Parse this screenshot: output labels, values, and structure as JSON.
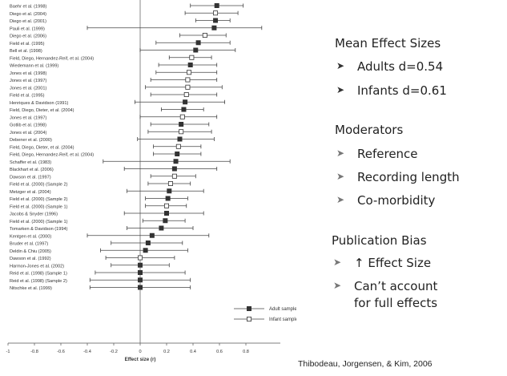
{
  "chart_data": {
    "type": "forest",
    "xlabel": "Effect size (r)",
    "xlim": [
      -1,
      1
    ],
    "xticks": [
      "-1",
      "-0.8",
      "-0.6",
      "-0.4",
      "-0.2",
      "0",
      "0.2",
      "0.4",
      "0.6",
      "0.8"
    ],
    "legend": {
      "placement": "bottom-right",
      "items": [
        "Adult sample",
        "Infant sample"
      ]
    },
    "studies": [
      {
        "label": "Baehr et al. (1998)",
        "group": "adult",
        "est": 0.58,
        "lo": 0.38,
        "hi": 0.78
      },
      {
        "label": "Diego et al. (2004)",
        "group": "infant",
        "est": 0.57,
        "lo": 0.34,
        "hi": 0.74
      },
      {
        "label": "Diego et al. (2001)",
        "group": "adult",
        "est": 0.57,
        "lo": 0.42,
        "hi": 0.68
      },
      {
        "label": "Pauli et al. (1999)",
        "group": "adult",
        "est": 0.56,
        "lo": -0.4,
        "hi": 0.92
      },
      {
        "label": "Diego et al. (2006)",
        "group": "infant",
        "est": 0.49,
        "lo": 0.3,
        "hi": 0.65
      },
      {
        "label": "Field et al. (1995)",
        "group": "adult",
        "est": 0.44,
        "lo": 0.12,
        "hi": 0.68
      },
      {
        "label": "Bell et al. (1998)",
        "group": "adult",
        "est": 0.42,
        "lo": 0.0,
        "hi": 0.72
      },
      {
        "label": "Field, Diego, Hernandez-Reif, et al. (2004)",
        "group": "infant",
        "est": 0.39,
        "lo": 0.22,
        "hi": 0.54
      },
      {
        "label": "Wiedemann et al. (1999)",
        "group": "adult",
        "est": 0.38,
        "lo": 0.14,
        "hi": 0.58
      },
      {
        "label": "Jones et al. (1998)",
        "group": "infant",
        "est": 0.37,
        "lo": 0.12,
        "hi": 0.58
      },
      {
        "label": "Jones et al. (1997)",
        "group": "infant",
        "est": 0.36,
        "lo": 0.08,
        "hi": 0.58
      },
      {
        "label": "Jones et al. (2001)",
        "group": "infant",
        "est": 0.36,
        "lo": 0.04,
        "hi": 0.62
      },
      {
        "label": "Field et al. (1995)",
        "group": "infant",
        "est": 0.35,
        "lo": 0.08,
        "hi": 0.58
      },
      {
        "label": "Henriques & Davidson (1991)",
        "group": "adult",
        "est": 0.34,
        "lo": -0.04,
        "hi": 0.64
      },
      {
        "label": "Field, Diego, Dieter, et al. (2004)",
        "group": "adult",
        "est": 0.33,
        "lo": 0.16,
        "hi": 0.48
      },
      {
        "label": "Jones et al. (1997)",
        "group": "infant",
        "est": 0.32,
        "lo": 0.0,
        "hi": 0.58
      },
      {
        "label": "Gotlib et al. (1998)",
        "group": "adult",
        "est": 0.31,
        "lo": 0.08,
        "hi": 0.52
      },
      {
        "label": "Jones et al. (2004)",
        "group": "infant",
        "est": 0.31,
        "lo": 0.06,
        "hi": 0.54
      },
      {
        "label": "Debener et al. (2000)",
        "group": "adult",
        "est": 0.3,
        "lo": -0.02,
        "hi": 0.56
      },
      {
        "label": "Field, Diego, Dieter, et al. (2004)",
        "group": "infant",
        "est": 0.29,
        "lo": 0.1,
        "hi": 0.46
      },
      {
        "label": "Field, Diego, Hernandez-Reif, et al. (2004)",
        "group": "adult",
        "est": 0.28,
        "lo": 0.1,
        "hi": 0.46
      },
      {
        "label": "Schaffer et al. (1983)",
        "group": "adult",
        "est": 0.27,
        "lo": -0.28,
        "hi": 0.68
      },
      {
        "label": "Blackhart et al. (2006)",
        "group": "adult",
        "est": 0.26,
        "lo": -0.12,
        "hi": 0.58
      },
      {
        "label": "Dawson et al. (1997)",
        "group": "infant",
        "est": 0.26,
        "lo": 0.08,
        "hi": 0.42
      },
      {
        "label": "Field et al. (2000) (Sample 2)",
        "group": "infant",
        "est": 0.23,
        "lo": 0.06,
        "hi": 0.38
      },
      {
        "label": "Metzger et al. (2004)",
        "group": "adult",
        "est": 0.22,
        "lo": -0.1,
        "hi": 0.48
      },
      {
        "label": "Field et al. (2000) (Sample 2)",
        "group": "adult",
        "est": 0.21,
        "lo": 0.04,
        "hi": 0.36
      },
      {
        "label": "Field et al. (2000) (Sample 1)",
        "group": "infant",
        "est": 0.2,
        "lo": 0.04,
        "hi": 0.35
      },
      {
        "label": "Jacobs & Snyder (1996)",
        "group": "adult",
        "est": 0.2,
        "lo": -0.12,
        "hi": 0.48
      },
      {
        "label": "Field et al. (2000) (Sample 1)",
        "group": "adult",
        "est": 0.19,
        "lo": 0.02,
        "hi": 0.34
      },
      {
        "label": "Tomarken & Davidson (1994)",
        "group": "adult",
        "est": 0.16,
        "lo": -0.1,
        "hi": 0.4
      },
      {
        "label": "Kentgen et al. (2000)",
        "group": "adult",
        "est": 0.09,
        "lo": -0.4,
        "hi": 0.52
      },
      {
        "label": "Bruder et al. (1997)",
        "group": "adult",
        "est": 0.06,
        "lo": -0.22,
        "hi": 0.32
      },
      {
        "label": "Deldin & Chiu (2005)",
        "group": "adult",
        "est": 0.04,
        "lo": -0.3,
        "hi": 0.36
      },
      {
        "label": "Dawson et al. (1992)",
        "group": "infant",
        "est": 0.0,
        "lo": -0.26,
        "hi": 0.26
      },
      {
        "label": "Harmon-Jones et al. (2002)",
        "group": "adult",
        "est": 0.0,
        "lo": -0.22,
        "hi": 0.22
      },
      {
        "label": "Reid et al. (1998) (Sample 1)",
        "group": "adult",
        "est": 0.0,
        "lo": -0.34,
        "hi": 0.34
      },
      {
        "label": "Reid et al. (1998) (Sample 2)",
        "group": "adult",
        "est": 0.0,
        "lo": -0.38,
        "hi": 0.38
      },
      {
        "label": "Nitschke et al. (1999)",
        "group": "adult",
        "est": 0.0,
        "lo": -0.38,
        "hi": 0.38
      }
    ]
  },
  "mean_effect": {
    "title": "Mean Effect Sizes",
    "items": [
      "Adults d=0.54",
      "Infants d=0.61"
    ]
  },
  "moderators": {
    "title": "Moderators",
    "items": [
      "Reference",
      "Recording length",
      "Co-morbidity"
    ]
  },
  "publication_bias": {
    "title": "Publication Bias",
    "items": [
      "↑ Effect Size",
      "Can’t account",
      "for full effects"
    ]
  },
  "citation": "Thibodeau, Jorgensen, & Kim, 2006"
}
